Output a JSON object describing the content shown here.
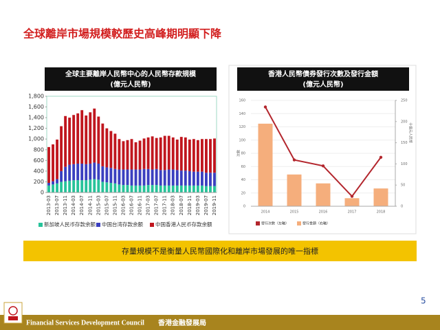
{
  "header": {
    "title": "全球離岸市場規模較歷史高峰期明顯下降"
  },
  "chart_data": [
    {
      "type": "bar",
      "stacked": true,
      "title": "全球主要離岸人民幣中心的人民幣存款規模",
      "subtitle": "(億元人民幣)",
      "categories": [
        "2013-03",
        null,
        "2013-07",
        null,
        "2013-11",
        null,
        "2014-03",
        null,
        "2014-07",
        null,
        "2014-11",
        null,
        "2015-03",
        null,
        "2015-07",
        null,
        "2015-11",
        null,
        "2016-03",
        null,
        "2016-07",
        null,
        "2016-11",
        null,
        "2017-03",
        null,
        "2017-07",
        null,
        "2017-11",
        null,
        "2018-03",
        null,
        "2018-07",
        null,
        "2018-11",
        null,
        "2019-03",
        null,
        "2019-07",
        null,
        "2019-11"
      ],
      "series": [
        {
          "name": "新加坡人民币存款余额",
          "color": "#27c39a",
          "values": [
            130,
            150,
            170,
            200,
            210,
            220,
            230,
            230,
            230,
            230,
            240,
            250,
            240,
            200,
            190,
            180,
            170,
            150,
            140,
            140,
            130,
            130,
            130,
            130,
            140,
            140,
            140,
            130,
            130,
            130,
            130,
            130,
            130,
            130,
            130,
            130,
            130,
            130,
            120,
            120,
            120
          ]
        },
        {
          "name": "中国台湾存款余额",
          "color": "#3a3fbf",
          "values": [
            50,
            60,
            80,
            200,
            270,
            300,
            300,
            310,
            310,
            300,
            300,
            310,
            300,
            290,
            280,
            280,
            270,
            280,
            290,
            290,
            300,
            300,
            300,
            310,
            300,
            290,
            300,
            290,
            290,
            300,
            300,
            290,
            280,
            280,
            270,
            260,
            260,
            260,
            250,
            250,
            250
          ]
        },
        {
          "name": "中国香港人民币存款余额",
          "color": "#c0161e",
          "values": [
            670,
            690,
            740,
            840,
            950,
            880,
            920,
            940,
            1000,
            910,
            960,
            1010,
            880,
            800,
            730,
            690,
            660,
            570,
            530,
            550,
            570,
            510,
            540,
            570,
            590,
            620,
            580,
            610,
            640,
            630,
            600,
            570,
            630,
            620,
            590,
            610,
            590,
            610,
            630,
            630,
            640
          ]
        }
      ],
      "ylim": [
        0,
        1800
      ],
      "yticks": [
        0,
        200,
        400,
        600,
        800,
        {
          "value": 1000,
          "label": "1,000"
        },
        {
          "value": 1200,
          "label": "1,200"
        },
        {
          "value": 1400,
          "label": "1,400"
        },
        {
          "value": 1600,
          "label": "1,600"
        },
        {
          "value": 1800,
          "label": "1,800"
        }
      ]
    },
    {
      "type": "combo",
      "title": "香港人民幣債券發行次數及發行金額",
      "subtitle": "(億元人民幣)",
      "categories": [
        "2014",
        "2015",
        "2016",
        "2017",
        "2018"
      ],
      "series": [
        {
          "name": "發行次數（左軸）",
          "color": "#b3262d",
          "type": "line",
          "values": [
            150,
            70,
            61,
            15,
            74
          ]
        },
        {
          "name": "發行金額（右軸）",
          "color": "#f5ae7c",
          "type": "bar",
          "axis": "y2",
          "values": [
            195,
            75,
            54,
            19,
            42
          ]
        }
      ],
      "ylabel": "次數",
      "y2label": "十億元人民幣",
      "ylim": [
        0,
        160
      ],
      "yticks": [
        0,
        20,
        40,
        60,
        80,
        100,
        120,
        140,
        160
      ],
      "y2lim": [
        0,
        250
      ],
      "y2ticks": [
        0,
        50,
        100,
        150,
        200,
        250
      ]
    }
  ],
  "banner": "存量規模不是衡量人民幣國際化和離岸市場發展的唯一指標",
  "page_number": "5",
  "footer": {
    "org": "Financial Services Development Council",
    "org_zh": "香港金融發展局"
  }
}
